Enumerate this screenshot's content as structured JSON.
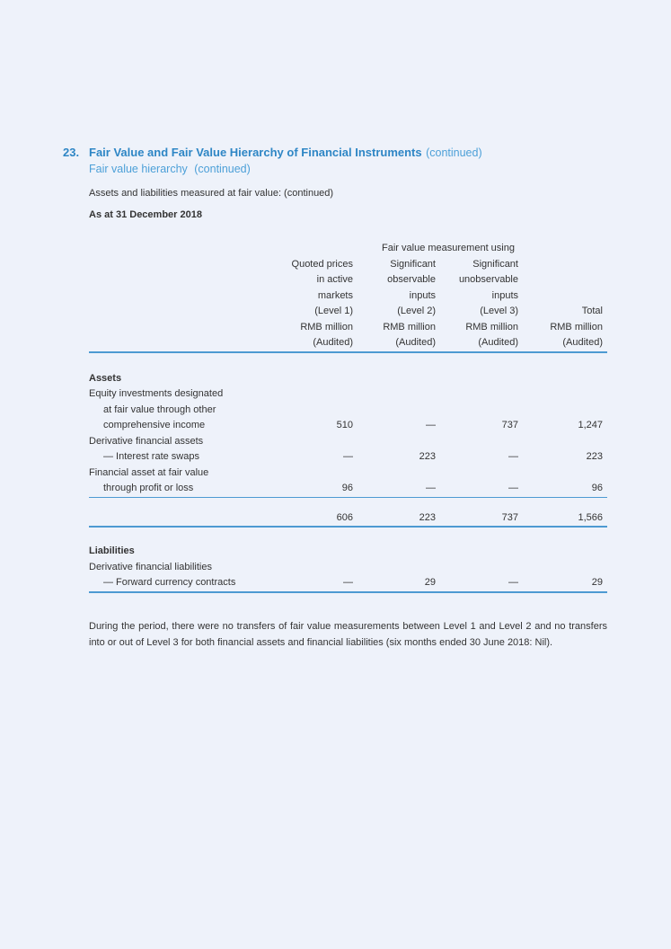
{
  "page": {
    "background": "#eef2fa"
  },
  "colors": {
    "title_blue": "#2e86c5",
    "light_blue": "#4da0d8",
    "rule_blue": "#4d9ad2",
    "body_text": "#333333"
  },
  "heading": {
    "number": "23.",
    "title": "Fair Value and Fair Value Hierarchy of Financial Instruments",
    "title_suffix": "(continued)",
    "subtitle": "Fair value hierarchy",
    "subtitle_suffix": "(continued)"
  },
  "intro": "Assets and liabilities measured at fair value: (continued)",
  "as_at": "As at 31 December 2018",
  "table": {
    "group_header": "Fair value measurement using",
    "header_rows": [
      [
        "Quoted prices",
        "Significant",
        "Significant",
        ""
      ],
      [
        "in active",
        "observable",
        "unobservable",
        ""
      ],
      [
        "markets",
        "inputs",
        "inputs",
        ""
      ],
      [
        "(Level 1)",
        "(Level 2)",
        "(Level 3)",
        "Total"
      ],
      [
        "RMB million",
        "RMB million",
        "RMB million",
        "RMB million"
      ],
      [
        "(Audited)",
        "(Audited)",
        "(Audited)",
        "(Audited)"
      ]
    ],
    "rows": [
      {
        "label": "Assets",
        "values": [
          "",
          "",
          "",
          ""
        ]
      },
      {
        "label": "Equity investments designated",
        "values": [
          "",
          "",
          "",
          ""
        ]
      },
      {
        "label": "at fair value through other",
        "values": [
          "",
          "",
          "",
          ""
        ]
      },
      {
        "label": "comprehensive income",
        "values": [
          "510",
          "—",
          "737",
          "1,247"
        ]
      },
      {
        "label": "Derivative financial assets",
        "values": [
          "",
          "",
          "",
          ""
        ]
      },
      {
        "label": "— Interest rate swaps",
        "values": [
          "—",
          "223",
          "—",
          "223"
        ]
      },
      {
        "label": "Financial asset at fair value",
        "values": [
          "",
          "",
          "",
          ""
        ]
      },
      {
        "label": "through profit or loss",
        "values": [
          "96",
          "—",
          "—",
          "96"
        ]
      },
      {
        "label": "",
        "values": [
          "606",
          "223",
          "737",
          "1,566"
        ]
      },
      {
        "label": "Liabilities",
        "values": [
          "",
          "",
          "",
          ""
        ]
      },
      {
        "label": "Derivative financial liabilities",
        "values": [
          "",
          "",
          "",
          ""
        ]
      },
      {
        "label": "— Forward currency contracts",
        "values": [
          "—",
          "29",
          "—",
          "29"
        ]
      }
    ]
  },
  "note": "During the period, there were no transfers of fair value measurements between Level 1 and Level 2 and no transfers into or out of Level 3 for both financial assets and financial liabilities (six months ended 30 June 2018: Nil)."
}
